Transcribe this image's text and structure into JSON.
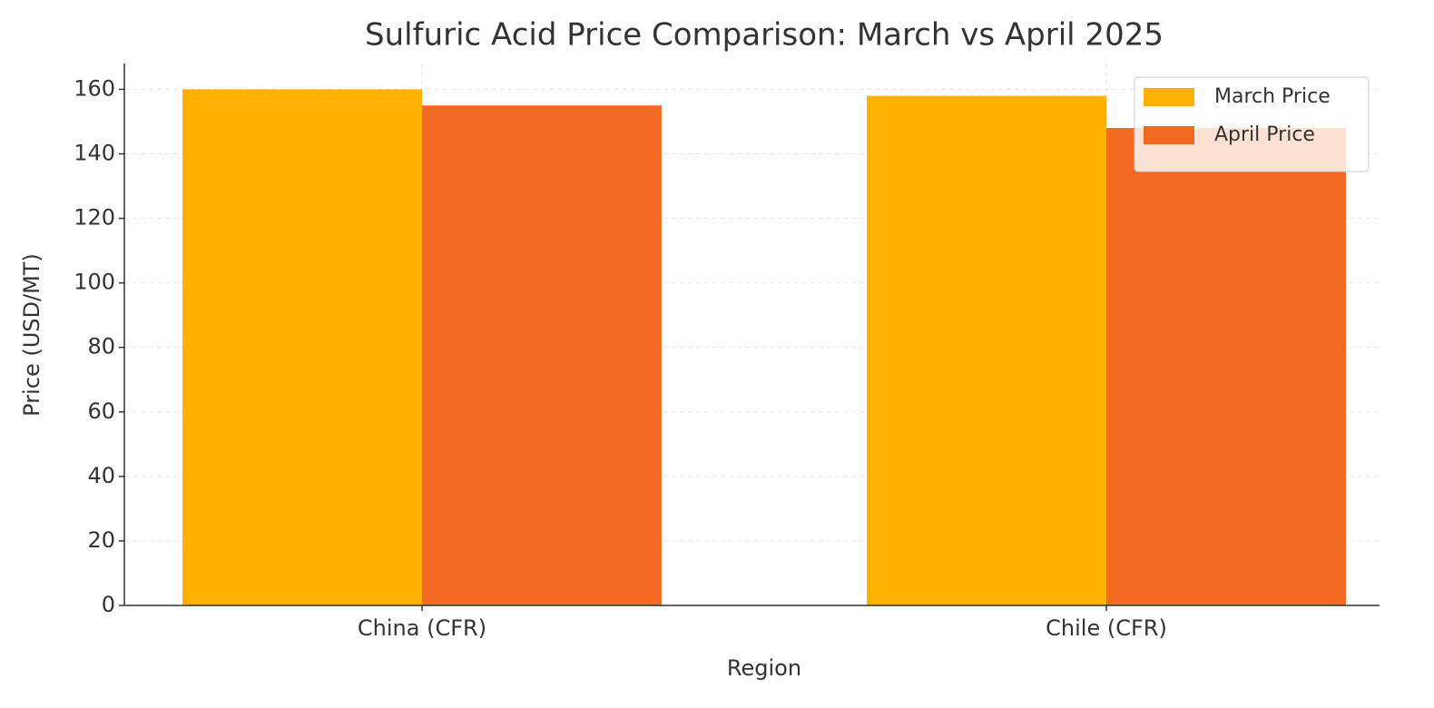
{
  "chart_data": {
    "type": "bar",
    "title": "Sulfuric Acid Price Comparison: March vs April 2025",
    "x_label": "Region",
    "y_label": "Price (USD/MT)",
    "categories": [
      "China (CFR)",
      "Chile (CFR)"
    ],
    "series": [
      {
        "name": "March Price",
        "color": "#ffb000",
        "values": [
          160,
          158
        ]
      },
      {
        "name": "April Price",
        "color": "#f26a21",
        "values": [
          155,
          148
        ]
      }
    ],
    "ylim": [
      0,
      168
    ],
    "yticks": [
      0,
      20,
      40,
      60,
      80,
      100,
      120,
      140,
      160
    ],
    "grid": true,
    "legend": "upper right"
  }
}
